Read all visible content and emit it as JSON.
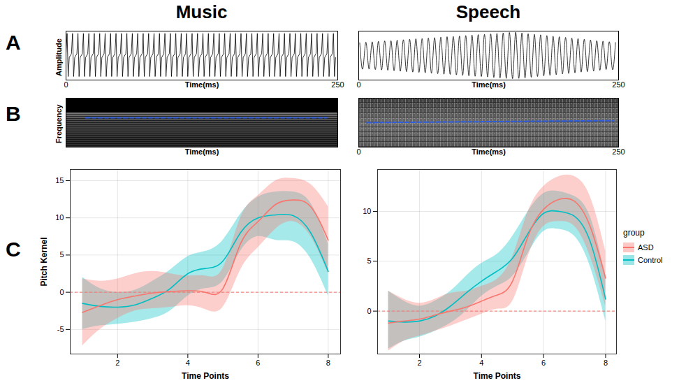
{
  "columns": [
    "Music",
    "Speech"
  ],
  "panel_letters": [
    "A",
    "B",
    "C"
  ],
  "chart_data": [
    {
      "panel": "A",
      "column": "Music",
      "type": "line",
      "x_label": "Time(ms)",
      "y_label": "Amplitude",
      "xlim": [
        0,
        250
      ],
      "xticks": [
        0,
        250
      ],
      "ylim": [
        -1.05,
        1.05
      ],
      "tick_labels": "x",
      "color": "#000000",
      "line_style": "solid",
      "x": [
        0,
        1,
        2,
        3,
        5,
        6,
        7,
        8,
        10,
        11,
        12,
        13,
        15,
        16,
        17,
        18,
        20,
        21,
        22,
        23,
        25,
        26,
        27,
        28,
        30,
        31,
        32,
        33,
        35,
        36,
        37,
        38,
        40,
        41,
        42,
        43,
        45,
        46,
        47,
        48,
        50,
        51,
        52,
        53,
        55,
        56,
        57,
        58,
        60,
        61,
        62,
        63,
        65,
        66,
        67,
        68,
        70,
        71,
        72,
        73,
        75,
        76,
        77,
        78,
        80,
        81,
        82,
        83,
        85,
        86,
        87,
        88,
        90,
        91,
        92,
        93,
        95,
        96,
        97,
        98,
        100,
        101,
        102,
        103,
        105,
        106,
        107,
        108,
        110,
        111,
        112,
        113,
        115,
        116,
        117,
        118,
        120,
        121,
        122,
        123,
        125,
        126,
        127,
        128,
        130,
        131,
        132,
        133,
        135,
        136,
        137,
        138,
        140,
        141,
        142,
        143,
        145,
        146,
        147,
        148,
        150,
        151,
        152,
        153,
        155,
        156,
        157,
        158,
        160,
        161,
        162,
        163,
        165,
        166,
        167,
        168,
        170,
        171,
        172,
        173,
        175,
        176,
        177,
        178,
        180,
        181,
        182,
        183,
        185,
        186,
        187,
        188,
        190,
        191,
        192,
        193,
        195,
        196,
        197,
        198,
        200,
        201,
        202,
        203,
        205,
        206,
        207,
        208,
        210,
        211,
        212,
        213,
        215,
        216,
        217,
        218,
        220,
        221,
        222,
        223,
        225,
        226,
        227,
        228,
        230,
        231,
        232,
        233,
        235,
        236,
        237,
        238,
        240,
        241,
        242,
        243,
        245,
        246,
        247,
        248
      ],
      "values": [
        0.08,
        0.95,
        -0.9,
        -0.08,
        0.08,
        0.95,
        -0.9,
        -0.08,
        0.08,
        0.95,
        -0.9,
        -0.08,
        0.08,
        0.95,
        -0.9,
        -0.08,
        0.08,
        0.95,
        -0.9,
        -0.08,
        0.08,
        0.95,
        -0.9,
        -0.08,
        0.08,
        0.95,
        -0.9,
        -0.08,
        0.08,
        0.95,
        -0.9,
        -0.08,
        0.08,
        0.95,
        -0.9,
        -0.08,
        0.08,
        0.95,
        -0.9,
        -0.08,
        0.08,
        0.95,
        -0.9,
        -0.08,
        0.08,
        0.95,
        -0.9,
        -0.08,
        0.08,
        0.95,
        -0.9,
        -0.08,
        0.08,
        0.95,
        -0.9,
        -0.08,
        0.08,
        0.95,
        -0.9,
        -0.08,
        0.08,
        0.95,
        -0.9,
        -0.08,
        0.08,
        0.95,
        -0.9,
        -0.08,
        0.08,
        0.95,
        -0.9,
        -0.08,
        0.08,
        0.95,
        -0.9,
        -0.08,
        0.08,
        0.95,
        -0.9,
        -0.08,
        0.08,
        0.95,
        -0.9,
        -0.08,
        0.08,
        0.95,
        -0.9,
        -0.08,
        0.08,
        0.95,
        -0.9,
        -0.08,
        0.08,
        0.95,
        -0.9,
        -0.08,
        0.08,
        0.95,
        -0.9,
        -0.08,
        0.08,
        0.95,
        -0.9,
        -0.08,
        0.08,
        0.95,
        -0.9,
        -0.08,
        0.08,
        0.95,
        -0.9,
        -0.08,
        0.08,
        0.95,
        -0.9,
        -0.08,
        0.08,
        0.95,
        -0.9,
        -0.08,
        0.08,
        0.95,
        -0.9,
        -0.08,
        0.08,
        0.95,
        -0.9,
        -0.08,
        0.08,
        0.95,
        -0.9,
        -0.08,
        0.08,
        0.95,
        -0.9,
        -0.08,
        0.08,
        0.95,
        -0.9,
        -0.08,
        0.08,
        0.95,
        -0.9,
        -0.08,
        0.08,
        0.95,
        -0.9,
        -0.08,
        0.08,
        0.95,
        -0.9,
        -0.08,
        0.08,
        0.95,
        -0.9,
        -0.08,
        0.08,
        0.95,
        -0.9,
        -0.08,
        0.08,
        0.95,
        -0.9,
        -0.08,
        0.08,
        0.95,
        -0.9,
        -0.08,
        0.08,
        0.95,
        -0.9,
        -0.08,
        0.08,
        0.95,
        -0.9,
        -0.08,
        0.08,
        0.95,
        -0.9,
        -0.08,
        0.08,
        0.95,
        -0.9,
        -0.08,
        0.08,
        0.95,
        -0.9,
        -0.08,
        0.08,
        0.95,
        -0.9,
        -0.08,
        0.08,
        0.95,
        -0.9,
        -0.08,
        0.08,
        0.95,
        -0.9,
        -0.08
      ]
    },
    {
      "panel": "A",
      "column": "Speech",
      "type": "line",
      "x_label": "Time(ms)",
      "xlim": [
        0,
        250
      ],
      "xticks": [
        0,
        250
      ],
      "ylim": [
        -1.05,
        1.05
      ],
      "tick_labels": "x",
      "color": "#000000",
      "line_style": "smooth",
      "x": [
        1,
        4,
        7,
        10,
        13,
        16,
        19,
        22,
        25,
        28,
        31,
        34,
        37,
        40,
        43,
        46,
        49,
        52,
        55,
        58,
        61,
        64,
        67,
        70,
        73,
        76,
        79,
        82,
        85,
        88,
        91,
        94,
        97,
        100,
        103,
        106,
        109,
        112,
        115,
        118,
        121,
        124,
        127,
        130,
        133,
        136,
        139,
        142,
        145,
        148,
        151,
        154,
        157,
        160,
        163,
        166,
        169,
        172,
        175,
        178,
        181,
        184,
        187,
        190,
        193,
        196,
        199,
        202,
        205,
        208,
        211,
        214,
        217,
        220,
        223,
        226,
        229,
        232,
        235,
        238,
        241,
        244,
        247
      ],
      "values": [
        0.55,
        -0.56,
        0.57,
        -0.58,
        0.59,
        -0.6,
        0.61,
        -0.62,
        0.63,
        -0.63,
        0.64,
        -0.65,
        0.66,
        -0.67,
        0.68,
        -0.69,
        0.7,
        -0.71,
        0.72,
        -0.72,
        0.73,
        -0.74,
        0.75,
        -0.76,
        0.77,
        -0.78,
        0.79,
        -0.8,
        0.81,
        -0.81,
        0.82,
        -0.83,
        0.84,
        -0.85,
        0.86,
        -0.87,
        0.88,
        -0.89,
        0.9,
        -0.9,
        0.91,
        -0.92,
        0.93,
        -0.94,
        0.95,
        -0.96,
        0.97,
        -0.98,
        0.99,
        -0.99,
        1,
        -0.98,
        0.97,
        -0.96,
        0.94,
        -0.93,
        0.91,
        -0.9,
        0.89,
        -0.87,
        0.86,
        -0.85,
        0.83,
        -0.82,
        0.81,
        -0.79,
        0.78,
        -0.77,
        0.75,
        -0.74,
        0.73,
        -0.71,
        0.7,
        -0.69,
        0.67,
        -0.66,
        0.64,
        -0.63,
        0.62,
        -0.6,
        0.59,
        -0.58,
        0.56
      ]
    },
    {
      "panel": "B",
      "column": "Music",
      "type": "spectrogram",
      "x_label": "Time(ms)",
      "y_label": "Frequency",
      "xlim": [
        0,
        250
      ],
      "xticks": [],
      "ylim": [
        0,
        1
      ],
      "tick_labels": false,
      "color": "#2f5fe0",
      "line_style": "dashed",
      "x": [
        18,
        240
      ],
      "values": [
        0.6,
        0.6
      ]
    },
    {
      "panel": "B",
      "column": "Speech",
      "type": "spectrogram",
      "x_label": "Time(ms)",
      "xlim": [
        0,
        250
      ],
      "xticks": [
        0,
        250
      ],
      "ylim": [
        0,
        1
      ],
      "tick_labels": "x",
      "color": "#2f5fe0",
      "line_style": "dashed",
      "x": [
        8,
        60,
        120,
        180,
        245
      ],
      "values": [
        0.5,
        0.51,
        0.52,
        0.53,
        0.54
      ]
    },
    {
      "panel": "C",
      "column": "Music",
      "type": "line",
      "x_label": "Time Points",
      "y_label": "Pitch Kernel",
      "xlim": [
        0.65,
        8.35
      ],
      "xticks": [
        2,
        4,
        6,
        8
      ],
      "ylim": [
        -8.3,
        16.5
      ],
      "yticks": [
        -5,
        0,
        5,
        10,
        15
      ],
      "grid": true,
      "reference_line": {
        "value": 0,
        "color": "#F8766D",
        "line_style": "dashed"
      },
      "x": [
        1,
        1.5,
        2,
        2.5,
        3,
        3.5,
        4,
        4.5,
        5,
        5.5,
        6,
        6.5,
        7,
        7.5,
        8
      ],
      "series": [
        {
          "name": "ASD",
          "color": "#F8766D",
          "values": [
            -2.7,
            -1.8,
            -1.0,
            -0.5,
            -0.1,
            0.1,
            0.2,
            0.0,
            0.5,
            6.5,
            9.5,
            11.8,
            12.4,
            11.5,
            7.0
          ],
          "lower": [
            -7.2,
            -5.0,
            -3.5,
            -2.5,
            -2.2,
            -2.0,
            -1.8,
            -2.3,
            -2.0,
            3.0,
            6.0,
            8.5,
            9.5,
            7.5,
            2.5
          ],
          "upper": [
            1.8,
            1.5,
            1.8,
            2.5,
            2.8,
            2.5,
            2.2,
            2.2,
            3.2,
            10.0,
            13.0,
            15.0,
            15.3,
            14.5,
            11.5
          ]
        },
        {
          "name": "Control",
          "color": "#00BFC4",
          "values": [
            -1.5,
            -1.9,
            -2.0,
            -1.7,
            -0.8,
            0.5,
            2.5,
            3.2,
            4.2,
            8.0,
            10.0,
            10.4,
            10.3,
            8.0,
            2.8
          ],
          "lower": [
            -5.0,
            -4.5,
            -4.3,
            -4.0,
            -3.5,
            -2.5,
            -0.5,
            0.5,
            1.5,
            5.5,
            7.5,
            7.0,
            6.8,
            4.5,
            -0.5
          ],
          "upper": [
            2.0,
            0.5,
            0.0,
            0.3,
            1.5,
            3.0,
            4.8,
            5.5,
            7.0,
            10.5,
            12.8,
            13.5,
            13.5,
            12.0,
            6.5
          ]
        }
      ]
    },
    {
      "panel": "C",
      "column": "Speech",
      "type": "line",
      "x_label": "Time Points",
      "xlim": [
        0.65,
        8.35
      ],
      "xticks": [
        2,
        4,
        6,
        8
      ],
      "ylim": [
        -4.3,
        14.2
      ],
      "yticks": [
        0,
        5,
        10
      ],
      "grid": true,
      "legend": "right",
      "legend_title": "group",
      "reference_line": {
        "value": 0,
        "color": "#F8766D",
        "line_style": "dashed"
      },
      "x": [
        1,
        1.5,
        2,
        2.5,
        3,
        3.5,
        4,
        4.5,
        5,
        5.5,
        6,
        6.5,
        7,
        7.5,
        8
      ],
      "series": [
        {
          "name": "ASD",
          "color": "#F8766D",
          "values": [
            -1.2,
            -1.0,
            -0.8,
            -0.4,
            0.0,
            0.4,
            1.0,
            1.6,
            3.0,
            7.5,
            10.2,
            11.2,
            11.0,
            8.5,
            3.3
          ],
          "lower": [
            -4.0,
            -3.0,
            -2.5,
            -2.0,
            -1.5,
            -0.9,
            -0.3,
            0.2,
            1.0,
            5.5,
            8.5,
            9.0,
            8.5,
            5.5,
            0.5
          ],
          "upper": [
            2.0,
            1.2,
            0.8,
            1.2,
            1.8,
            2.0,
            2.5,
            3.2,
            5.5,
            10.0,
            12.5,
            13.5,
            13.5,
            11.5,
            6.0
          ]
        },
        {
          "name": "Control",
          "color": "#00BFC4",
          "values": [
            -1.0,
            -1.1,
            -1.0,
            -0.5,
            0.5,
            1.8,
            3.0,
            4.0,
            5.3,
            7.8,
            9.8,
            10.0,
            9.5,
            7.0,
            1.2
          ],
          "lower": [
            -3.8,
            -3.0,
            -2.6,
            -2.0,
            -1.2,
            0.0,
            1.5,
            2.5,
            3.5,
            5.8,
            8.0,
            8.2,
            7.5,
            4.5,
            -1.0
          ],
          "upper": [
            2.0,
            1.0,
            0.5,
            1.0,
            2.0,
            3.5,
            4.8,
            5.7,
            7.5,
            10.0,
            11.8,
            12.0,
            11.5,
            9.5,
            3.5
          ]
        }
      ]
    }
  ]
}
